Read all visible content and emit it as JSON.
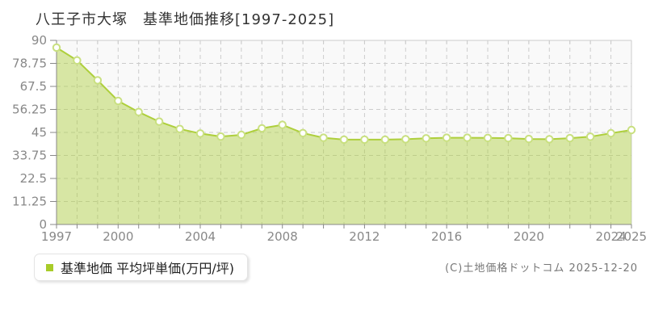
{
  "title": "八王子市大塚　基準地価推移[1997-2025]",
  "legend": {
    "label": "基準地価 平均坪単価(万円/坪)",
    "marker_color": "#a8cc29"
  },
  "copyright": "(C)土地価格ドットコム 2025-12-20",
  "chart_data": {
    "type": "area",
    "title": "八王子市大塚 基準地価推移[1997-2025]",
    "x": [
      1997,
      1998,
      1999,
      2000,
      2001,
      2002,
      2003,
      2004,
      2005,
      2006,
      2007,
      2008,
      2009,
      2010,
      2011,
      2012,
      2013,
      2014,
      2015,
      2016,
      2017,
      2018,
      2019,
      2020,
      2021,
      2022,
      2023,
      2024,
      2025
    ],
    "series": [
      {
        "name": "基準地価 平均坪単価(万円/坪)",
        "values": [
          86.5,
          80.2,
          70.5,
          60.4,
          55.0,
          50.3,
          46.7,
          44.5,
          43.0,
          43.8,
          47.0,
          48.7,
          44.7,
          42.4,
          41.5,
          41.5,
          41.5,
          41.7,
          42.1,
          42.4,
          42.4,
          42.3,
          42.2,
          41.8,
          41.7,
          42.2,
          42.9,
          44.6,
          46.2
        ]
      }
    ],
    "xlabel": "",
    "ylabel": "万円/坪",
    "ylim": [
      0,
      90
    ],
    "yticks": [
      0,
      11.25,
      22.5,
      33.75,
      45,
      56.25,
      67.5,
      78.75,
      90
    ],
    "xtick_labels": [
      "1997",
      "2000",
      "2004",
      "2008",
      "2012",
      "2016",
      "2020",
      "2024",
      "2025"
    ],
    "grid": true,
    "legend_position": "bottom-left",
    "colors": {
      "plot_bg": "#f9f9f9",
      "grid": "#cccccc",
      "border": "#cccccc",
      "axis": "#888888",
      "tick_text": "#888888",
      "line": "#aecf3c",
      "area_fill": "rgba(174,207,60,0.45)",
      "marker_stroke": "#c9e080",
      "marker_fill": "#ffffff"
    }
  }
}
